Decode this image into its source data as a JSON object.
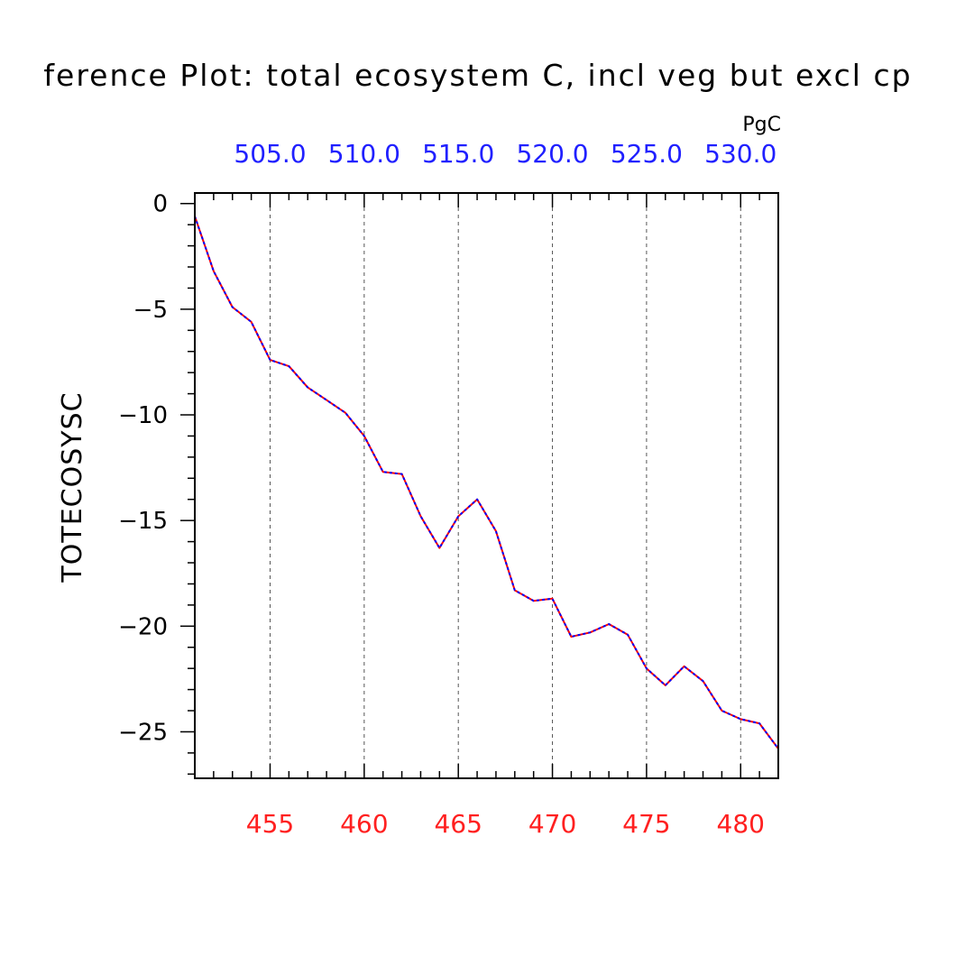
{
  "chart_data": {
    "type": "line",
    "title": "ference Plot: total ecosystem C, incl veg but excl cp",
    "units": "PgC",
    "ylabel": "TOTECOSYSC",
    "xlabel": "",
    "xlim": [
      451,
      482
    ],
    "ylim": [
      -27.2,
      0.5
    ],
    "x_ticks": [
      455,
      460,
      465,
      470,
      475,
      480
    ],
    "x_tick_labels": [
      "455",
      "460",
      "465",
      "470",
      "475",
      "480"
    ],
    "y_ticks": [
      0,
      -5,
      -10,
      -15,
      -20,
      -25
    ],
    "y_tick_labels": [
      "0",
      "−5",
      "−10",
      "−15",
      "−20",
      "−25"
    ],
    "top_axis": {
      "ticks": [
        505.0,
        510.0,
        515.0,
        520.0,
        525.0,
        530.0
      ],
      "tick_labels": [
        "505.0",
        "510.0",
        "515.0",
        "520.0",
        "525.0",
        "530.0"
      ],
      "range": [
        501,
        532
      ]
    },
    "grid": "vertical dashed at bottom-axis major ticks",
    "x": [
      451,
      452,
      453,
      454,
      455,
      456,
      457,
      458,
      459,
      460,
      461,
      462,
      463,
      464,
      465,
      466,
      467,
      468,
      469,
      470,
      471,
      472,
      473,
      474,
      475,
      476,
      477,
      478,
      479,
      480,
      481,
      482
    ],
    "series": [
      {
        "color": "#ff0000",
        "style": "solid",
        "values": [
          -0.6,
          -3.2,
          -4.9,
          -5.6,
          -7.4,
          -7.7,
          -8.7,
          -9.3,
          -9.9,
          -11.0,
          -12.7,
          -12.8,
          -14.8,
          -16.3,
          -14.8,
          -14.0,
          -15.5,
          -18.3,
          -18.8,
          -18.7,
          -20.5,
          -20.3,
          -19.9,
          -20.4,
          -22.0,
          -22.8,
          -21.9,
          -22.6,
          -24.0,
          -24.4,
          -24.6,
          -25.8
        ]
      },
      {
        "color": "#0000ff",
        "style": "dashed",
        "values": [
          -0.6,
          -3.2,
          -4.9,
          -5.6,
          -7.4,
          -7.7,
          -8.7,
          -9.3,
          -9.9,
          -11.0,
          -12.7,
          -12.8,
          -14.8,
          -16.3,
          -14.8,
          -14.0,
          -15.5,
          -18.3,
          -18.8,
          -18.7,
          -20.5,
          -20.3,
          -19.9,
          -20.4,
          -22.0,
          -22.8,
          -21.9,
          -22.6,
          -24.0,
          -24.4,
          -24.6,
          -25.8
        ]
      }
    ]
  }
}
